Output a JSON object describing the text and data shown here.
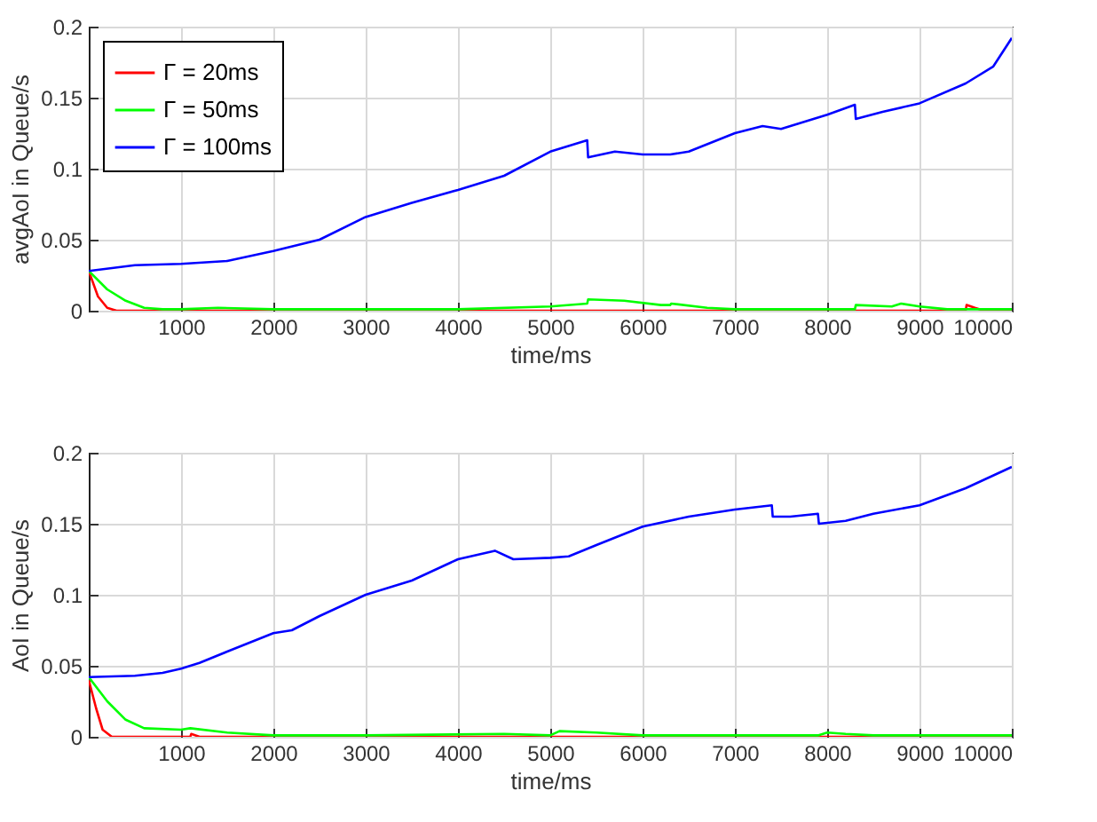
{
  "chart_data": [
    {
      "type": "line",
      "xlabel": "time/ms",
      "ylabel": "avgAoI in Queue/s",
      "xlim": [
        0,
        10000
      ],
      "xticks": [
        1000,
        2000,
        3000,
        4000,
        5000,
        6000,
        7000,
        8000,
        9000,
        10000
      ],
      "ylim": [
        0,
        0.2
      ],
      "yticks": [
        0,
        0.05,
        0.1,
        0.15,
        0.2
      ],
      "grid": true,
      "legend": "top left",
      "series": [
        {
          "name": "Γ = 20ms",
          "color": "#ff0000",
          "x": [
            0,
            100,
            200,
            300,
            1000,
            5000,
            9500,
            9510,
            9600,
            9700,
            10000
          ],
          "values": [
            0.028,
            0.01,
            0.002,
            0,
            0,
            0,
            0,
            0.004,
            0.002,
            0,
            0
          ]
        },
        {
          "name": "Γ = 50ms",
          "color": "#00ff00",
          "x": [
            0,
            200,
            400,
            600,
            800,
            1000,
            1400,
            2000,
            3000,
            4000,
            5000,
            5400,
            5410,
            5800,
            6200,
            6300,
            6310,
            6700,
            7000,
            8300,
            8310,
            8700,
            8800,
            9000,
            9300,
            10000
          ],
          "values": [
            0.028,
            0.015,
            0.007,
            0.002,
            0.001,
            0.001,
            0.002,
            0.001,
            0.001,
            0.001,
            0.003,
            0.005,
            0.008,
            0.007,
            0.004,
            0.004,
            0.005,
            0.002,
            0.001,
            0.001,
            0.004,
            0.003,
            0.005,
            0.003,
            0.001,
            0.001
          ]
        },
        {
          "name": "Γ = 100ms",
          "color": "#0000ff",
          "x": [
            0,
            500,
            1000,
            1500,
            2000,
            2500,
            3000,
            3500,
            4000,
            4500,
            5000,
            5400,
            5410,
            5700,
            6000,
            6300,
            6500,
            7000,
            7300,
            7500,
            8000,
            8300,
            8310,
            8600,
            9000,
            9500,
            9800,
            10000
          ],
          "values": [
            0.028,
            0.032,
            0.033,
            0.035,
            0.042,
            0.05,
            0.066,
            0.076,
            0.085,
            0.095,
            0.112,
            0.12,
            0.108,
            0.112,
            0.11,
            0.11,
            0.112,
            0.125,
            0.13,
            0.128,
            0.138,
            0.145,
            0.135,
            0.14,
            0.146,
            0.16,
            0.172,
            0.192
          ]
        }
      ]
    },
    {
      "type": "line",
      "xlabel": "time/ms",
      "ylabel": "AoI in Queue/s",
      "xlim": [
        0,
        10000
      ],
      "xticks": [
        1000,
        2000,
        3000,
        4000,
        5000,
        6000,
        7000,
        8000,
        9000,
        10000
      ],
      "ylim": [
        0,
        0.2
      ],
      "yticks": [
        0,
        0.05,
        0.1,
        0.15,
        0.2
      ],
      "grid": true,
      "legend": "top left",
      "series": [
        {
          "name": "Γ = 20ms",
          "color": "#ff0000",
          "x": [
            0,
            80,
            150,
            250,
            1100,
            1110,
            1200,
            10000
          ],
          "values": [
            0.04,
            0.02,
            0.005,
            0,
            0,
            0.002,
            0,
            0
          ]
        },
        {
          "name": "Γ = 50ms",
          "color": "#00ff00",
          "x": [
            0,
            200,
            400,
            600,
            1000,
            1100,
            1500,
            2000,
            3000,
            4500,
            5000,
            5100,
            5500,
            6000,
            7900,
            8000,
            8200,
            8500,
            10000
          ],
          "values": [
            0.042,
            0.025,
            0.012,
            0.006,
            0.005,
            0.006,
            0.003,
            0.001,
            0.001,
            0.002,
            0.001,
            0.004,
            0.003,
            0.001,
            0.001,
            0.003,
            0.002,
            0.001,
            0.001
          ]
        },
        {
          "name": "Γ = 100ms",
          "color": "#0000ff",
          "x": [
            0,
            500,
            800,
            1000,
            1200,
            1500,
            2000,
            2200,
            2500,
            3000,
            3500,
            4000,
            4400,
            4600,
            5000,
            5200,
            5500,
            6000,
            6500,
            7000,
            7400,
            7410,
            7600,
            7900,
            7910,
            8200,
            8500,
            9000,
            9500,
            10000
          ],
          "values": [
            0.042,
            0.043,
            0.045,
            0.048,
            0.052,
            0.06,
            0.073,
            0.075,
            0.085,
            0.1,
            0.11,
            0.125,
            0.131,
            0.125,
            0.126,
            0.127,
            0.135,
            0.148,
            0.155,
            0.16,
            0.163,
            0.155,
            0.155,
            0.157,
            0.15,
            0.152,
            0.157,
            0.163,
            0.175,
            0.19
          ]
        }
      ]
    }
  ]
}
